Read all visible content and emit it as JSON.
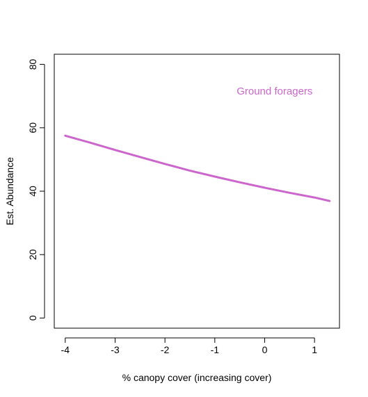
{
  "chart_data": {
    "type": "line",
    "title": "",
    "xlabel": "% canopy cover (increasing cover)",
    "ylabel": "Est. Abundance",
    "xlim": [
      -4.22,
      1.5
    ],
    "ylim": [
      -3.2,
      83.2
    ],
    "x_ticks": [
      -4,
      -3,
      -2,
      -1,
      0,
      1
    ],
    "x_tick_labels": [
      "-4",
      "-3",
      "-2",
      "-1",
      "0",
      "1"
    ],
    "y_ticks": [
      0,
      20,
      40,
      60,
      80
    ],
    "y_tick_labels": [
      "0",
      "20",
      "40",
      "60",
      "80"
    ],
    "grid": false,
    "series": [
      {
        "color": "#cc66cc",
        "x": [
          -4,
          -3.5,
          -3,
          -2.5,
          -2,
          -1.5,
          -1,
          -0.5,
          0,
          0.5,
          1,
          1.3
        ],
        "y": [
          57.5,
          55.3,
          53.0,
          50.8,
          48.6,
          46.5,
          44.6,
          42.8,
          41.1,
          39.5,
          38.0,
          36.9
        ]
      }
    ],
    "annotations": [
      {
        "text": "Ground foragers",
        "x": 0.2,
        "y": 70.5,
        "color": "#cc66cc"
      }
    ]
  }
}
